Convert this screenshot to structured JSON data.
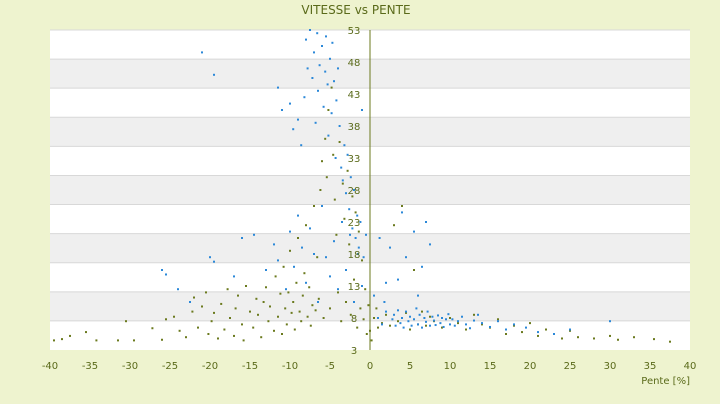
{
  "chart_data": {
    "type": "scatter",
    "title": "VITESSE vs PENTE",
    "xlabel": "Pente [%]",
    "ylabel": "",
    "xlim": [
      -40,
      40
    ],
    "ylim": [
      3,
      53
    ],
    "x_ticks": [
      "-40",
      "-35",
      "-30",
      "-25",
      "-20",
      "-15",
      "-10",
      "-5",
      "0",
      "5",
      "10",
      "15",
      "20",
      "25",
      "30",
      "35",
      "40"
    ],
    "y_ticks": [
      "53",
      "48",
      "43",
      "38",
      "33",
      "28",
      "23",
      "18",
      "13",
      "8",
      "3"
    ],
    "grid": true,
    "legend": "none",
    "series": [
      {
        "color": "#6b7a1e",
        "points": [
          [
            -39.5,
            4.5
          ],
          [
            -38.5,
            4.7
          ],
          [
            -37.5,
            5.2
          ],
          [
            -35.5,
            5.8
          ],
          [
            -34.2,
            4.5
          ],
          [
            -31.5,
            4.5
          ],
          [
            -30.5,
            7.5
          ],
          [
            -29.5,
            4.5
          ],
          [
            -27.2,
            6.4
          ],
          [
            -26.0,
            4.6
          ],
          [
            -25.5,
            7.8
          ],
          [
            -24.5,
            8.2
          ],
          [
            -23.8,
            6.0
          ],
          [
            -23.0,
            5.0
          ],
          [
            -22.2,
            9.0
          ],
          [
            -22.0,
            11.2
          ],
          [
            -21.5,
            6.5
          ],
          [
            -21.0,
            9.8
          ],
          [
            -20.5,
            12.0
          ],
          [
            -20.2,
            5.5
          ],
          [
            -19.8,
            7.5
          ],
          [
            -19.5,
            8.8
          ],
          [
            -19.0,
            4.8
          ],
          [
            -18.6,
            10.2
          ],
          [
            -18.2,
            6.2
          ],
          [
            -17.8,
            12.5
          ],
          [
            -17.5,
            8.0
          ],
          [
            -17.0,
            5.2
          ],
          [
            -16.8,
            9.5
          ],
          [
            -16.5,
            11.5
          ],
          [
            -16.0,
            7.0
          ],
          [
            -15.8,
            4.5
          ],
          [
            -15.5,
            13.0
          ],
          [
            -15.0,
            9.0
          ],
          [
            -14.6,
            6.5
          ],
          [
            -14.2,
            11.0
          ],
          [
            -14.0,
            8.5
          ],
          [
            -13.6,
            5.0
          ],
          [
            -13.3,
            10.5
          ],
          [
            -13.0,
            12.8
          ],
          [
            -12.7,
            7.5
          ],
          [
            -12.5,
            9.8
          ],
          [
            -12.0,
            6.0
          ],
          [
            -11.8,
            14.5
          ],
          [
            -11.5,
            8.2
          ],
          [
            -11.2,
            11.8
          ],
          [
            -11.0,
            5.5
          ],
          [
            -10.8,
            16.0
          ],
          [
            -10.6,
            9.5
          ],
          [
            -10.4,
            7.0
          ],
          [
            -10.2,
            12.0
          ],
          [
            -10.0,
            18.5
          ],
          [
            -9.8,
            8.8
          ],
          [
            -9.6,
            10.5
          ],
          [
            -9.4,
            6.2
          ],
          [
            -9.2,
            13.5
          ],
          [
            -9.0,
            20.5
          ],
          [
            -8.8,
            9.0
          ],
          [
            -8.6,
            7.5
          ],
          [
            -8.4,
            11.5
          ],
          [
            -8.2,
            15.0
          ],
          [
            -8.0,
            22.5
          ],
          [
            -7.8,
            8.2
          ],
          [
            -7.6,
            12.8
          ],
          [
            -7.4,
            6.8
          ],
          [
            -7.2,
            10.0
          ],
          [
            -7.0,
            25.5
          ],
          [
            -6.8,
            9.2
          ],
          [
            -6.6,
            17.5
          ],
          [
            -6.4,
            11.0
          ],
          [
            -6.2,
            28.0
          ],
          [
            -6.0,
            32.5
          ],
          [
            -5.8,
            8.0
          ],
          [
            -5.6,
            36.0
          ],
          [
            -5.4,
            30.0
          ],
          [
            -5.2,
            40.5
          ],
          [
            -5.0,
            9.5
          ],
          [
            -4.8,
            44.0
          ],
          [
            -4.6,
            33.5
          ],
          [
            -4.4,
            26.5
          ],
          [
            -4.2,
            21.0
          ],
          [
            -4.0,
            12.0
          ],
          [
            -3.8,
            35.5
          ],
          [
            -3.6,
            7.5
          ],
          [
            -3.4,
            29.0
          ],
          [
            -3.2,
            23.5
          ],
          [
            -3.0,
            10.5
          ],
          [
            -2.8,
            31.0
          ],
          [
            -2.6,
            19.5
          ],
          [
            -2.4,
            8.5
          ],
          [
            -2.2,
            27.0
          ],
          [
            -2.0,
            14.0
          ],
          [
            -1.8,
            24.5
          ],
          [
            -1.6,
            6.5
          ],
          [
            -1.4,
            21.5
          ],
          [
            -1.2,
            9.5
          ],
          [
            -1.0,
            17.0
          ],
          [
            -0.8,
            7.8
          ],
          [
            -0.6,
            12.5
          ],
          [
            -0.4,
            5.5
          ],
          [
            -0.2,
            10.0
          ],
          [
            0.0,
            6.0
          ],
          [
            0.2,
            4.5
          ],
          [
            0.5,
            8.0
          ],
          [
            0.8,
            9.5
          ],
          [
            1.0,
            6.5
          ],
          [
            1.5,
            7.2
          ],
          [
            2.0,
            8.5
          ],
          [
            2.5,
            6.8
          ],
          [
            3.0,
            22.5
          ],
          [
            3.5,
            7.5
          ],
          [
            4.0,
            25.5
          ],
          [
            4.5,
            8.8
          ],
          [
            5.0,
            6.2
          ],
          [
            5.5,
            15.5
          ],
          [
            6.0,
            7.0
          ],
          [
            6.5,
            9.0
          ],
          [
            7.0,
            6.8
          ],
          [
            7.5,
            8.2
          ],
          [
            8.0,
            7.5
          ],
          [
            9.0,
            6.5
          ],
          [
            10.0,
            8.0
          ],
          [
            11.0,
            7.2
          ],
          [
            12.0,
            6.2
          ],
          [
            13.0,
            8.5
          ],
          [
            14.0,
            7.0
          ],
          [
            15.0,
            6.5
          ],
          [
            16.0,
            7.8
          ],
          [
            17.0,
            5.5
          ],
          [
            18.0,
            6.8
          ],
          [
            19.0,
            5.8
          ],
          [
            20.0,
            7.2
          ],
          [
            21.0,
            5.2
          ],
          [
            22.0,
            6.2
          ],
          [
            23.0,
            5.5
          ],
          [
            24.0,
            4.8
          ],
          [
            25.0,
            6.0
          ],
          [
            26.0,
            5.0
          ],
          [
            28.0,
            4.8
          ],
          [
            30.0,
            5.2
          ],
          [
            31.0,
            4.6
          ],
          [
            33.0,
            5.0
          ],
          [
            35.5,
            4.7
          ],
          [
            37.5,
            4.3
          ]
        ]
      },
      {
        "color": "#2b88d8",
        "points": [
          [
            -21.0,
            49.5
          ],
          [
            -19.5,
            46.0
          ],
          [
            -11.5,
            44.0
          ],
          [
            -11.0,
            40.5
          ],
          [
            -10.0,
            41.5
          ],
          [
            -9.6,
            37.5
          ],
          [
            -9.0,
            39.0
          ],
          [
            -8.6,
            35.0
          ],
          [
            -8.2,
            42.5
          ],
          [
            -8.0,
            51.5
          ],
          [
            -7.8,
            47.0
          ],
          [
            -7.5,
            53.0
          ],
          [
            -7.2,
            45.5
          ],
          [
            -7.0,
            49.5
          ],
          [
            -6.8,
            38.5
          ],
          [
            -6.6,
            52.5
          ],
          [
            -6.5,
            43.5
          ],
          [
            -6.3,
            47.5
          ],
          [
            -6.0,
            50.5
          ],
          [
            -5.8,
            41.0
          ],
          [
            -5.6,
            46.5
          ],
          [
            -5.5,
            52.0
          ],
          [
            -5.3,
            44.5
          ],
          [
            -5.2,
            36.5
          ],
          [
            -5.0,
            48.5
          ],
          [
            -4.8,
            40.0
          ],
          [
            -4.7,
            51.0
          ],
          [
            -4.5,
            45.0
          ],
          [
            -4.3,
            33.0
          ],
          [
            -4.2,
            42.0
          ],
          [
            -4.0,
            47.0
          ],
          [
            -3.8,
            38.0
          ],
          [
            -3.6,
            31.5
          ],
          [
            -3.4,
            29.5
          ],
          [
            -3.2,
            35.0
          ],
          [
            -3.0,
            27.5
          ],
          [
            -2.8,
            33.5
          ],
          [
            -2.6,
            25.0
          ],
          [
            -2.4,
            30.0
          ],
          [
            -2.2,
            22.0
          ],
          [
            -2.0,
            28.0
          ],
          [
            -1.8,
            20.5
          ],
          [
            -1.6,
            24.0
          ],
          [
            -1.4,
            19.0
          ],
          [
            -1.2,
            23.0
          ],
          [
            -1.0,
            40.5
          ],
          [
            -0.8,
            17.5
          ],
          [
            -0.5,
            21.0
          ],
          [
            -26.0,
            15.5
          ],
          [
            -25.5,
            14.8
          ],
          [
            -24.0,
            12.5
          ],
          [
            -22.5,
            10.5
          ],
          [
            -20.0,
            17.5
          ],
          [
            -19.5,
            16.8
          ],
          [
            -17.0,
            14.5
          ],
          [
            -16.0,
            20.5
          ],
          [
            -14.5,
            21.0
          ],
          [
            -13.0,
            15.5
          ],
          [
            -12.0,
            19.5
          ],
          [
            -11.5,
            17.0
          ],
          [
            -10.5,
            12.5
          ],
          [
            -10.0,
            21.5
          ],
          [
            -9.5,
            16.0
          ],
          [
            -9.0,
            24.0
          ],
          [
            -8.5,
            19.0
          ],
          [
            -8.0,
            13.5
          ],
          [
            -7.5,
            22.0
          ],
          [
            -7.0,
            18.0
          ],
          [
            -6.5,
            10.5
          ],
          [
            -6.0,
            25.5
          ],
          [
            -5.5,
            17.5
          ],
          [
            -5.0,
            14.5
          ],
          [
            -4.5,
            20.0
          ],
          [
            -4.0,
            12.5
          ],
          [
            -3.5,
            23.0
          ],
          [
            -3.0,
            15.5
          ],
          [
            -2.5,
            21.0
          ],
          [
            -2.0,
            10.5
          ],
          [
            -1.5,
            18.0
          ],
          [
            -1.0,
            13.0
          ],
          [
            0.5,
            11.5
          ],
          [
            1.0,
            8.0
          ],
          [
            1.2,
            20.5
          ],
          [
            1.5,
            7.0
          ],
          [
            2.0,
            9.0
          ],
          [
            2.5,
            19.0
          ],
          [
            2.8,
            7.8
          ],
          [
            3.0,
            8.5
          ],
          [
            3.2,
            6.8
          ],
          [
            3.5,
            9.2
          ],
          [
            3.8,
            7.2
          ],
          [
            4.0,
            8.0
          ],
          [
            4.2,
            6.5
          ],
          [
            4.5,
            9.0
          ],
          [
            4.8,
            7.5
          ],
          [
            5.0,
            8.2
          ],
          [
            5.2,
            6.8
          ],
          [
            5.5,
            7.8
          ],
          [
            5.8,
            9.5
          ],
          [
            6.0,
            7.0
          ],
          [
            6.2,
            8.5
          ],
          [
            6.5,
            6.5
          ],
          [
            6.8,
            8.0
          ],
          [
            7.0,
            7.4
          ],
          [
            7.2,
            9.0
          ],
          [
            7.5,
            6.8
          ],
          [
            7.8,
            8.2
          ],
          [
            8.0,
            7.6
          ],
          [
            8.2,
            6.9
          ],
          [
            8.5,
            8.4
          ],
          [
            8.8,
            7.2
          ],
          [
            9.0,
            8.0
          ],
          [
            9.2,
            6.6
          ],
          [
            9.5,
            7.8
          ],
          [
            9.8,
            8.6
          ],
          [
            10.0,
            7.0
          ],
          [
            10.3,
            7.8
          ],
          [
            10.6,
            6.8
          ],
          [
            11.0,
            7.5
          ],
          [
            11.5,
            8.2
          ],
          [
            12.0,
            7.0
          ],
          [
            12.5,
            6.4
          ],
          [
            13.0,
            7.6
          ],
          [
            13.5,
            8.5
          ],
          [
            14.0,
            7.2
          ],
          [
            15.0,
            6.6
          ],
          [
            16.0,
            7.5
          ],
          [
            17.0,
            6.2
          ],
          [
            18.0,
            7.0
          ],
          [
            19.5,
            6.5
          ],
          [
            21.0,
            5.8
          ],
          [
            23.0,
            5.5
          ],
          [
            25.0,
            6.2
          ],
          [
            30.0,
            7.5
          ],
          [
            4.0,
            24.5
          ],
          [
            5.5,
            21.5
          ],
          [
            6.5,
            16.0
          ],
          [
            7.0,
            23.0
          ],
          [
            7.5,
            19.5
          ],
          [
            3.5,
            14.0
          ],
          [
            4.5,
            17.5
          ],
          [
            2.0,
            13.5
          ],
          [
            1.8,
            10.5
          ],
          [
            6.0,
            11.5
          ]
        ]
      }
    ]
  }
}
